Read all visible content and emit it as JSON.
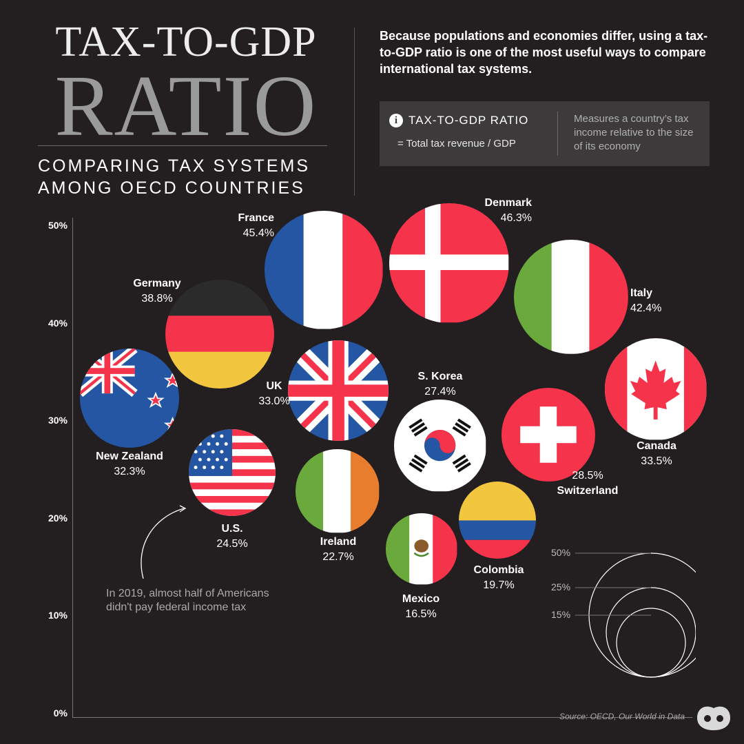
{
  "header": {
    "title_line1": "TAX-TO-GDP",
    "title_line2": "RATIO",
    "subtitle_line1": "COMPARING TAX SYSTEMS",
    "subtitle_line2": "AMONG OECD COUNTRIES",
    "intro": "Because populations and economies differ, using a tax-to-GDP ratio is one of the most useful ways to compare international tax systems."
  },
  "definition": {
    "icon": "info-icon",
    "title": "TAX-TO-GDP RATIO",
    "formula": "= Total tax revenue / GDP",
    "description": "Measures a country’s tax income relative to the size of its economy"
  },
  "annotation": {
    "line1": "In 2019, almost half of Americans",
    "line2": "didn't pay federal income tax"
  },
  "source": "Source: OECD, Our World in Data",
  "colors": {
    "background": "#231f20",
    "red": "#f5334a",
    "blue": "#2556a3",
    "green": "#6aaa3d",
    "yellow": "#f2c63f",
    "orange": "#e87d2e",
    "black": "#2b2b2b"
  },
  "chart_data": {
    "type": "scatter",
    "encoding": "bubble size proportional to tax-to-GDP ratio; vertical position by ratio",
    "ylim": [
      0,
      50
    ],
    "y_ticks": [
      "50%",
      "40%",
      "30%",
      "20%",
      "10%",
      "0%"
    ],
    "points": [
      {
        "country": "Denmark",
        "value": 46.3,
        "label": "46.3%",
        "flag": "denmark"
      },
      {
        "country": "France",
        "value": 45.4,
        "label": "45.4%",
        "flag": "france"
      },
      {
        "country": "Italy",
        "value": 42.4,
        "label": "42.4%",
        "flag": "italy"
      },
      {
        "country": "Germany",
        "value": 38.8,
        "label": "38.8%",
        "flag": "germany"
      },
      {
        "country": "Canada",
        "value": 33.5,
        "label": "33.5%",
        "flag": "canada"
      },
      {
        "country": "UK",
        "value": 33.0,
        "label": "33.0%",
        "flag": "uk"
      },
      {
        "country": "New Zealand",
        "value": 32.3,
        "label": "32.3%",
        "flag": "new-zealand"
      },
      {
        "country": "Switzerland",
        "value": 28.5,
        "label": "28.5%",
        "flag": "switzerland"
      },
      {
        "country": "S. Korea",
        "value": 27.4,
        "label": "27.4%",
        "flag": "south-korea"
      },
      {
        "country": "U.S.",
        "value": 24.5,
        "label": "24.5%",
        "flag": "usa"
      },
      {
        "country": "Ireland",
        "value": 22.7,
        "label": "22.7%",
        "flag": "ireland"
      },
      {
        "country": "Colombia",
        "value": 19.7,
        "label": "19.7%",
        "flag": "colombia"
      },
      {
        "country": "Mexico",
        "value": 16.5,
        "label": "16.5%",
        "flag": "mexico"
      }
    ],
    "size_legend": [
      {
        "label": "50%",
        "value": 50
      },
      {
        "label": "25%",
        "value": 25
      },
      {
        "label": "15%",
        "value": 15
      }
    ]
  }
}
